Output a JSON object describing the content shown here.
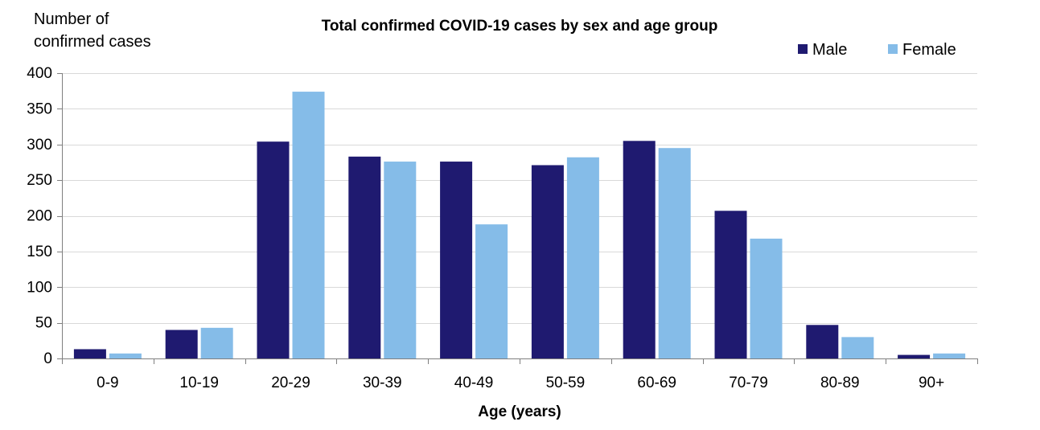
{
  "chart_data": {
    "type": "bar",
    "title": "Total confirmed COVID-19 cases by sex and age group",
    "xlabel": "Age (years)",
    "ylabel_lines": [
      "Number of",
      "confirmed cases"
    ],
    "categories": [
      "0-9",
      "10-19",
      "20-29",
      "30-39",
      "40-49",
      "50-59",
      "60-69",
      "70-79",
      "80-89",
      "90+"
    ],
    "series": [
      {
        "name": "Male",
        "color": "#1f1a70",
        "values": [
          13,
          40,
          304,
          283,
          276,
          271,
          305,
          207,
          47,
          5
        ]
      },
      {
        "name": "Female",
        "color": "#85bce8",
        "values": [
          7,
          43,
          374,
          276,
          188,
          282,
          295,
          168,
          30,
          7
        ]
      }
    ],
    "ylim": [
      0,
      400
    ],
    "yticks": [
      0,
      50,
      100,
      150,
      200,
      250,
      300,
      350,
      400
    ],
    "grid": true,
    "legend_position": "top-right"
  }
}
